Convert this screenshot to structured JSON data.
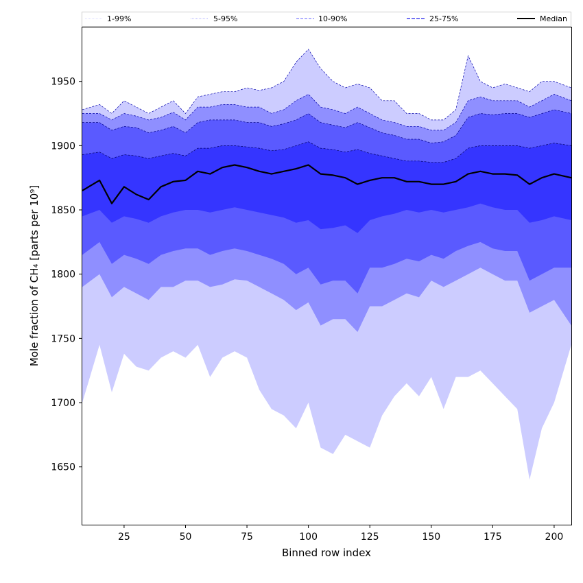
{
  "chart_data": {
    "type": "area",
    "xlabel": "Binned row index",
    "ylabel": "Mole fraction of CH₄ [parts per 10⁹]",
    "xlim": [
      8,
      207
    ],
    "ylim": [
      1605,
      1992
    ],
    "xticks": [
      25,
      50,
      75,
      100,
      125,
      150,
      175,
      200
    ],
    "yticks": [
      1650,
      1700,
      1750,
      1800,
      1850,
      1900,
      1950
    ],
    "legend_position": "top (above plot)",
    "colors": {
      "band": "#3333ff",
      "median": "#000000",
      "axis": "#000000"
    },
    "x": [
      8,
      15,
      20,
      25,
      30,
      35,
      40,
      45,
      50,
      55,
      60,
      65,
      70,
      75,
      80,
      85,
      90,
      95,
      100,
      105,
      110,
      115,
      120,
      125,
      130,
      135,
      140,
      145,
      150,
      155,
      160,
      165,
      170,
      175,
      180,
      185,
      190,
      195,
      200,
      207
    ],
    "series": [
      {
        "name": "1-99%",
        "lower": [
          1700,
          1745,
          1708,
          1738,
          1728,
          1725,
          1735,
          1740,
          1735,
          1745,
          1720,
          1735,
          1740,
          1735,
          1710,
          1695,
          1690,
          1680,
          1700,
          1665,
          1660,
          1675,
          1670,
          1665,
          1690,
          1705,
          1715,
          1705,
          1720,
          1695,
          1720,
          1720,
          1725,
          1715,
          1705,
          1695,
          1640,
          1680,
          1700,
          1745
        ],
        "upper": [
          1928,
          1932,
          1925,
          1935,
          1930,
          1925,
          1930,
          1935,
          1925,
          1938,
          1940,
          1942,
          1942,
          1945,
          1943,
          1945,
          1950,
          1965,
          1975,
          1960,
          1950,
          1945,
          1948,
          1945,
          1935,
          1935,
          1925,
          1925,
          1920,
          1920,
          1928,
          1970,
          1950,
          1945,
          1948,
          1945,
          1942,
          1950,
          1950,
          1945
        ]
      },
      {
        "name": "5-95%",
        "lower": [
          1790,
          1800,
          1782,
          1790,
          1785,
          1780,
          1790,
          1790,
          1795,
          1795,
          1790,
          1792,
          1796,
          1795,
          1790,
          1785,
          1780,
          1772,
          1778,
          1760,
          1765,
          1765,
          1755,
          1775,
          1775,
          1780,
          1785,
          1782,
          1795,
          1790,
          1795,
          1800,
          1805,
          1800,
          1795,
          1795,
          1770,
          1775,
          1780,
          1760
        ],
        "upper": [
          1925,
          1925,
          1920,
          1925,
          1923,
          1920,
          1922,
          1926,
          1920,
          1930,
          1930,
          1932,
          1932,
          1930,
          1930,
          1925,
          1928,
          1935,
          1940,
          1930,
          1928,
          1925,
          1930,
          1925,
          1920,
          1918,
          1915,
          1915,
          1912,
          1912,
          1918,
          1935,
          1938,
          1935,
          1935,
          1935,
          1930,
          1935,
          1940,
          1935
        ]
      },
      {
        "name": "10-90%",
        "lower": [
          1815,
          1825,
          1808,
          1815,
          1812,
          1808,
          1815,
          1818,
          1820,
          1820,
          1815,
          1818,
          1820,
          1818,
          1815,
          1812,
          1808,
          1800,
          1805,
          1792,
          1795,
          1795,
          1785,
          1805,
          1805,
          1808,
          1812,
          1810,
          1815,
          1812,
          1818,
          1822,
          1825,
          1820,
          1818,
          1818,
          1795,
          1800,
          1805,
          1805
        ],
        "upper": [
          1918,
          1918,
          1912,
          1915,
          1914,
          1910,
          1912,
          1915,
          1910,
          1918,
          1920,
          1920,
          1920,
          1918,
          1918,
          1915,
          1917,
          1920,
          1925,
          1918,
          1916,
          1914,
          1918,
          1914,
          1910,
          1908,
          1905,
          1905,
          1902,
          1903,
          1908,
          1922,
          1925,
          1924,
          1925,
          1925,
          1922,
          1925,
          1928,
          1925
        ]
      },
      {
        "name": "25-75%",
        "lower": [
          1845,
          1850,
          1840,
          1845,
          1843,
          1840,
          1845,
          1848,
          1850,
          1850,
          1848,
          1850,
          1852,
          1850,
          1848,
          1846,
          1844,
          1840,
          1842,
          1835,
          1836,
          1838,
          1832,
          1842,
          1845,
          1847,
          1850,
          1848,
          1850,
          1848,
          1850,
          1852,
          1855,
          1852,
          1850,
          1850,
          1840,
          1842,
          1845,
          1842
        ],
        "upper": [
          1893,
          1895,
          1890,
          1893,
          1892,
          1890,
          1892,
          1894,
          1892,
          1898,
          1898,
          1900,
          1900,
          1899,
          1898,
          1896,
          1897,
          1900,
          1903,
          1898,
          1897,
          1895,
          1897,
          1894,
          1892,
          1890,
          1888,
          1888,
          1887,
          1887,
          1890,
          1898,
          1900,
          1900,
          1900,
          1900,
          1898,
          1900,
          1902,
          1900
        ]
      },
      {
        "name": "Median",
        "values": [
          1865,
          1873,
          1855,
          1868,
          1862,
          1858,
          1868,
          1872,
          1873,
          1880,
          1878,
          1883,
          1885,
          1883,
          1880,
          1878,
          1880,
          1882,
          1885,
          1878,
          1877,
          1875,
          1870,
          1873,
          1875,
          1875,
          1872,
          1872,
          1870,
          1870,
          1872,
          1878,
          1880,
          1878,
          1878,
          1877,
          1870,
          1875,
          1878,
          1875
        ]
      }
    ]
  }
}
